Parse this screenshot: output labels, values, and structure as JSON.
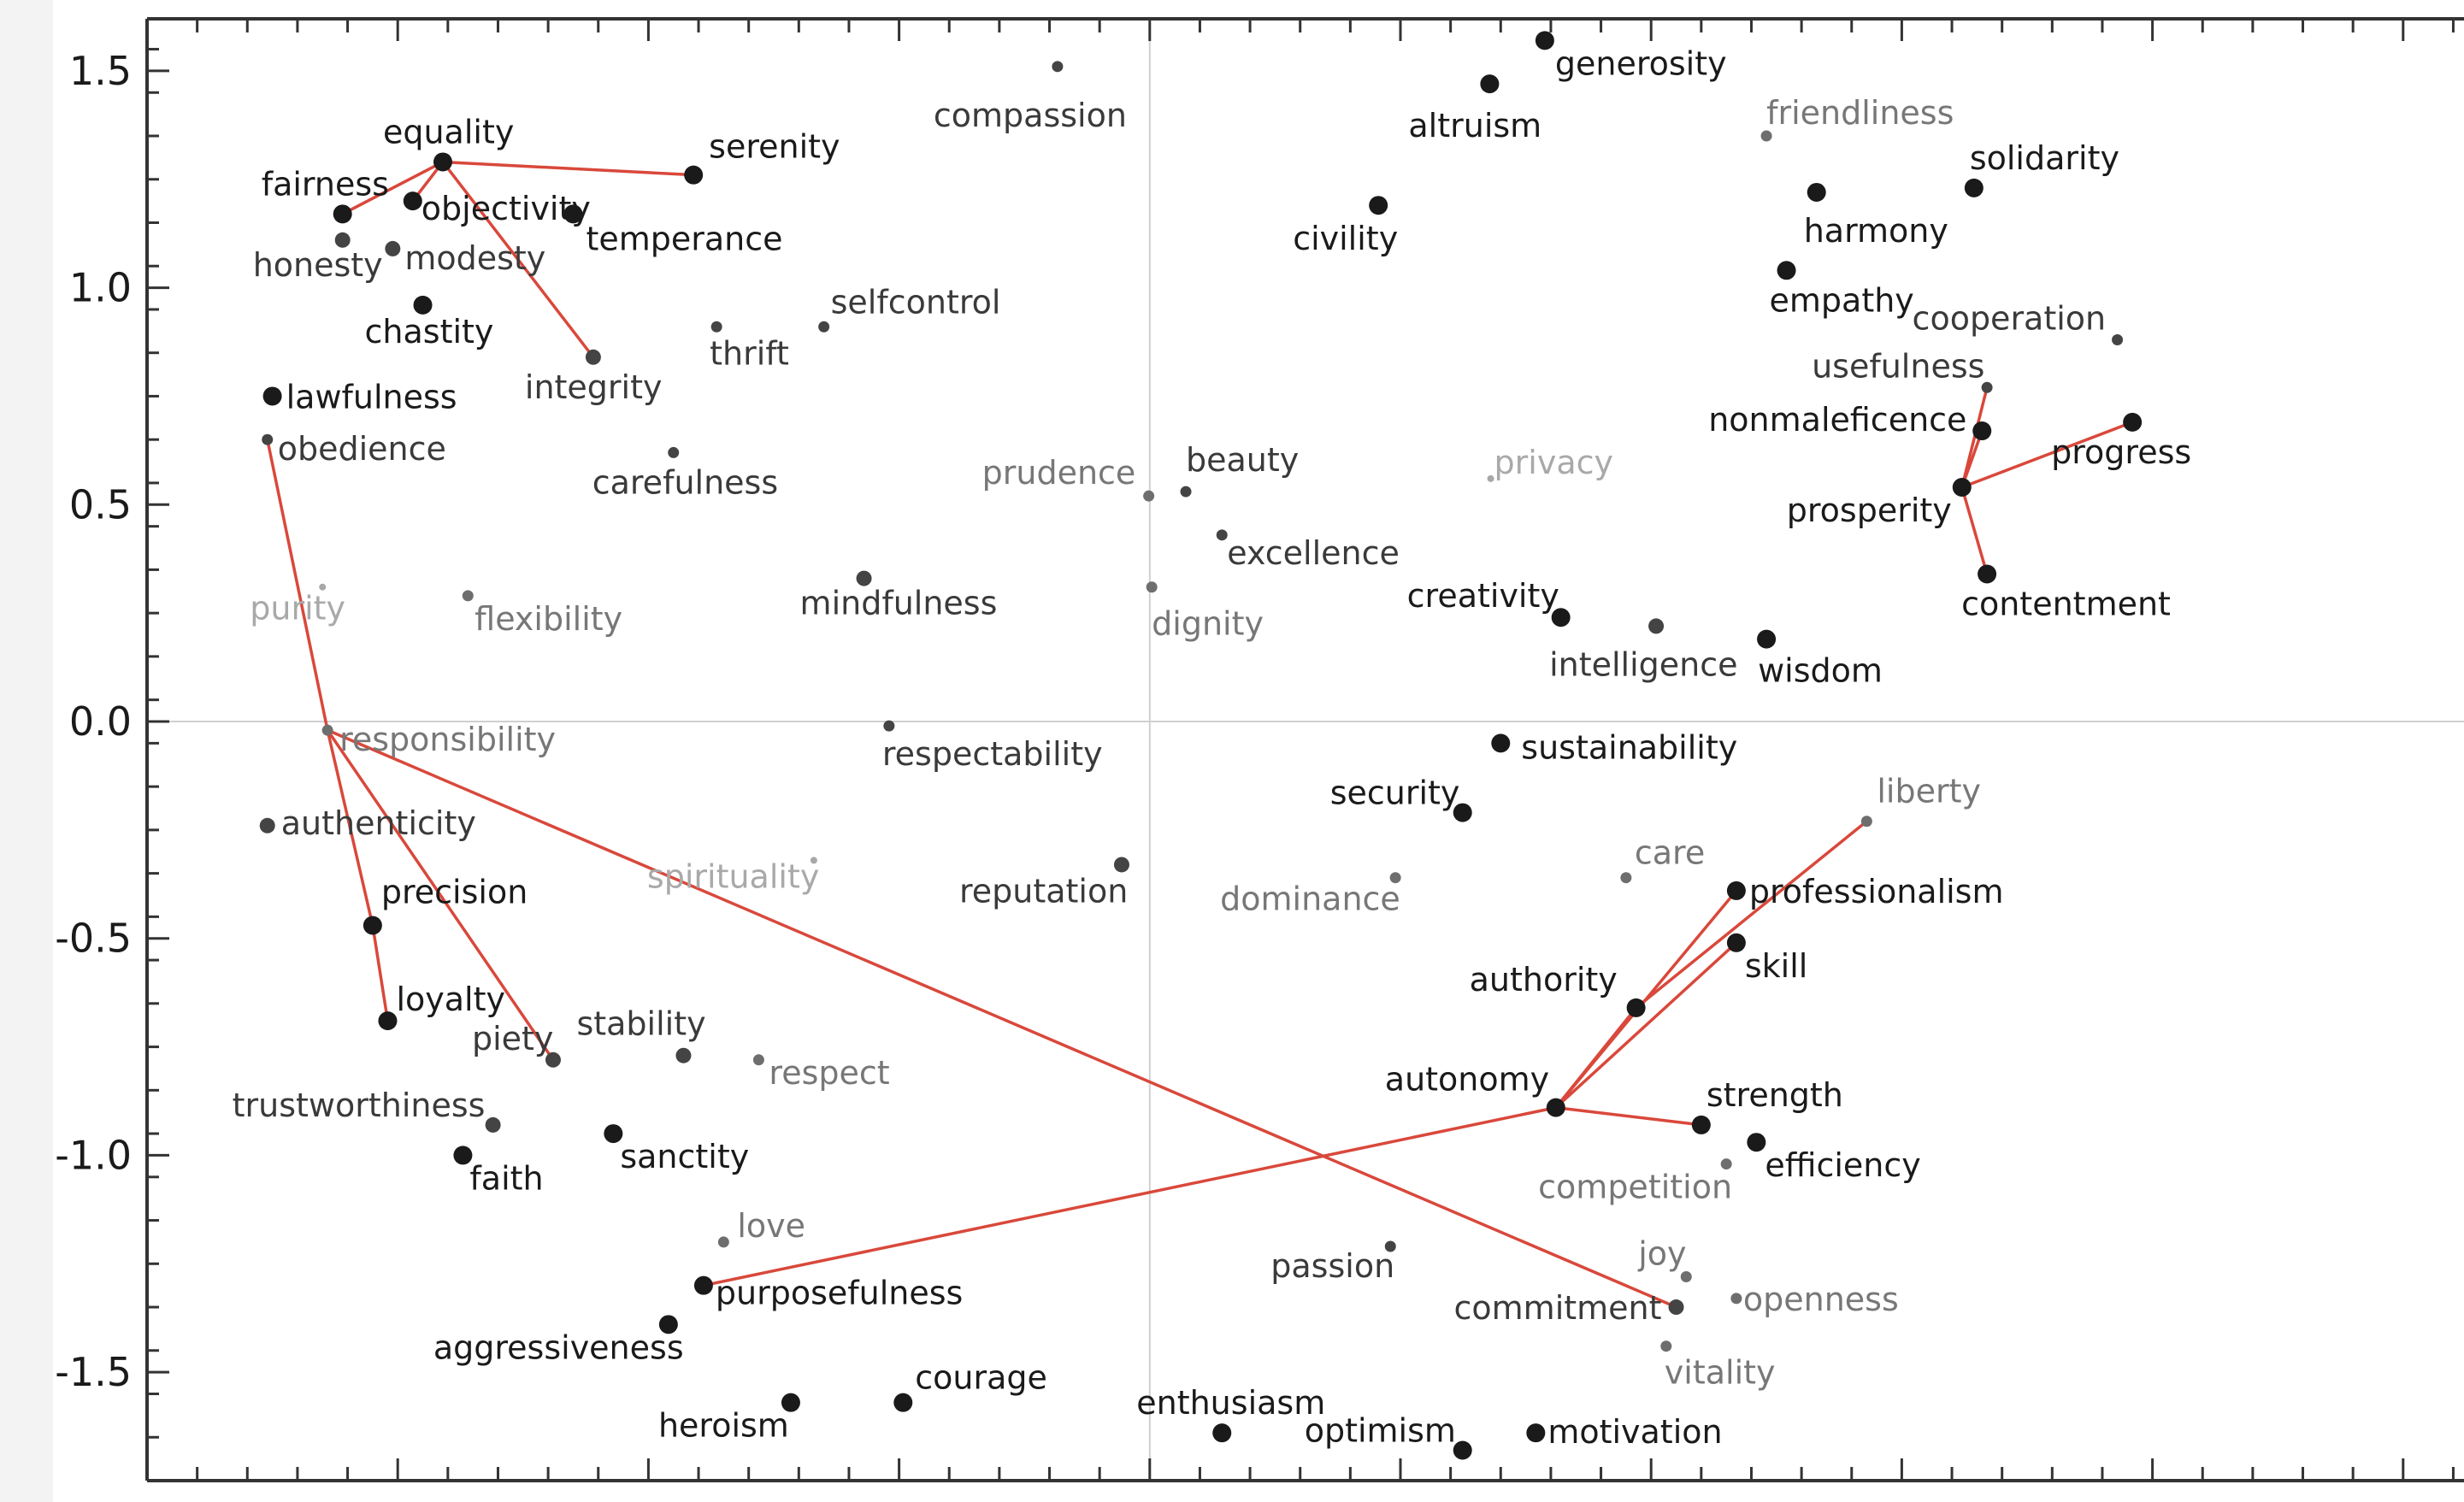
{
  "chart_data": {
    "type": "scatter",
    "title": "",
    "xlabel": "",
    "ylabel": "",
    "xlim": [
      -1.0,
      1.5
    ],
    "ylim": [
      -1.75,
      1.62
    ],
    "grid": false,
    "reference_lines": {
      "x": 0,
      "y": 0
    },
    "y_ticks": [
      1.5,
      1.0,
      0.5,
      0.0,
      -0.5,
      -1.0,
      -1.5
    ],
    "y_tick_labels": [
      "1.5",
      "1.0",
      "0.5",
      "0.0",
      "-0.5",
      "-1.0",
      "-1.5"
    ],
    "colors": {
      "line": "#d9483b",
      "axis": "#333333",
      "refline": "#d0d0d0"
    },
    "points": [
      {
        "label": "compassion",
        "x": -0.092,
        "y": 1.51,
        "shade": "dark",
        "size": "small"
      },
      {
        "label": "generosity",
        "x": 0.394,
        "y": 1.57,
        "shade": "black",
        "size": "large"
      },
      {
        "label": "altruism",
        "x": 0.339,
        "y": 1.47,
        "shade": "black",
        "size": "large"
      },
      {
        "label": "friendliness",
        "x": 0.615,
        "y": 1.35,
        "shade": "gray",
        "size": "small"
      },
      {
        "label": "solidarity",
        "x": 0.822,
        "y": 1.23,
        "shade": "black",
        "size": "large"
      },
      {
        "label": "harmony",
        "x": 0.665,
        "y": 1.22,
        "shade": "black",
        "size": "large"
      },
      {
        "label": "civility",
        "x": 0.228,
        "y": 1.19,
        "shade": "black",
        "size": "large"
      },
      {
        "label": "empathy",
        "x": 0.635,
        "y": 1.04,
        "shade": "black",
        "size": "large"
      },
      {
        "label": "cooperation",
        "x": 0.965,
        "y": 0.88,
        "shade": "dark",
        "size": "small"
      },
      {
        "label": "usefulness",
        "x": 0.835,
        "y": 0.77,
        "shade": "dark",
        "size": "small"
      },
      {
        "label": "nonmaleficence",
        "x": 0.83,
        "y": 0.67,
        "shade": "black",
        "size": "large"
      },
      {
        "label": "progress",
        "x": 0.98,
        "y": 0.69,
        "shade": "black",
        "size": "large"
      },
      {
        "label": "prosperity",
        "x": 0.81,
        "y": 0.54,
        "shade": "black",
        "size": "large"
      },
      {
        "label": "contentment",
        "x": 0.835,
        "y": 0.34,
        "shade": "black",
        "size": "large"
      },
      {
        "label": "privacy",
        "x": 0.34,
        "y": 0.56,
        "shade": "light",
        "size": "tiny"
      },
      {
        "label": "beauty",
        "x": 0.036,
        "y": 0.53,
        "shade": "dark",
        "size": "small"
      },
      {
        "label": "prudence",
        "x": -0.001,
        "y": 0.52,
        "shade": "gray",
        "size": "small"
      },
      {
        "label": "excellence",
        "x": 0.072,
        "y": 0.43,
        "shade": "dark",
        "size": "small"
      },
      {
        "label": "dignity",
        "x": 0.002,
        "y": 0.31,
        "shade": "gray",
        "size": "small"
      },
      {
        "label": "creativity",
        "x": 0.41,
        "y": 0.24,
        "shade": "black",
        "size": "large"
      },
      {
        "label": "intelligence",
        "x": 0.505,
        "y": 0.22,
        "shade": "dark",
        "size": "medium"
      },
      {
        "label": "wisdom",
        "x": 0.615,
        "y": 0.19,
        "shade": "black",
        "size": "large"
      },
      {
        "label": "sustainability",
        "x": 0.35,
        "y": -0.05,
        "shade": "black",
        "size": "large"
      },
      {
        "label": "liberty",
        "x": 0.715,
        "y": -0.23,
        "shade": "gray",
        "size": "small"
      },
      {
        "label": "security",
        "x": 0.312,
        "y": -0.21,
        "shade": "black",
        "size": "large"
      },
      {
        "label": "care",
        "x": 0.475,
        "y": -0.36,
        "shade": "gray",
        "size": "small"
      },
      {
        "label": "professionalism",
        "x": 0.585,
        "y": -0.39,
        "shade": "black",
        "size": "large"
      },
      {
        "label": "skill",
        "x": 0.585,
        "y": -0.51,
        "shade": "black",
        "size": "large"
      },
      {
        "label": "authority",
        "x": 0.485,
        "y": -0.66,
        "shade": "black",
        "size": "large"
      },
      {
        "label": "autonomy",
        "x": 0.405,
        "y": -0.89,
        "shade": "black",
        "size": "large"
      },
      {
        "label": "strength",
        "x": 0.55,
        "y": -0.93,
        "shade": "black",
        "size": "large"
      },
      {
        "label": "efficiency",
        "x": 0.605,
        "y": -0.97,
        "shade": "black",
        "size": "large"
      },
      {
        "label": "competition",
        "x": 0.575,
        "y": -1.02,
        "shade": "gray",
        "size": "small"
      },
      {
        "label": "passion",
        "x": 0.24,
        "y": -1.21,
        "shade": "dark",
        "size": "small"
      },
      {
        "label": "joy",
        "x": 0.535,
        "y": -1.28,
        "shade": "gray",
        "size": "small"
      },
      {
        "label": "openness",
        "x": 0.585,
        "y": -1.33,
        "shade": "gray",
        "size": "small"
      },
      {
        "label": "commitment",
        "x": 0.525,
        "y": -1.35,
        "shade": "dark",
        "size": "medium"
      },
      {
        "label": "vitality",
        "x": 0.515,
        "y": -1.44,
        "shade": "gray",
        "size": "small"
      },
      {
        "label": "motivation",
        "x": 0.385,
        "y": -1.64,
        "shade": "black",
        "size": "large"
      },
      {
        "label": "optimism",
        "x": 0.312,
        "y": -1.68,
        "shade": "black",
        "size": "large"
      },
      {
        "label": "enthusiasm",
        "x": 0.072,
        "y": -1.64,
        "shade": "black",
        "size": "large"
      },
      {
        "label": "equality",
        "x": -0.705,
        "y": 1.29,
        "shade": "black",
        "size": "large"
      },
      {
        "label": "serenity",
        "x": -0.455,
        "y": 1.26,
        "shade": "black",
        "size": "large"
      },
      {
        "label": "fairness",
        "x": -0.805,
        "y": 1.17,
        "shade": "black",
        "size": "large"
      },
      {
        "label": "objectivity",
        "x": -0.735,
        "y": 1.2,
        "shade": "black",
        "size": "large"
      },
      {
        "label": "temperance",
        "x": -0.575,
        "y": 1.17,
        "shade": "black",
        "size": "large"
      },
      {
        "label": "honesty",
        "x": -0.805,
        "y": 1.11,
        "shade": "dark",
        "size": "medium"
      },
      {
        "label": "modesty",
        "x": -0.755,
        "y": 1.09,
        "shade": "dark",
        "size": "medium"
      },
      {
        "label": "chastity",
        "x": -0.725,
        "y": 0.96,
        "shade": "black",
        "size": "large"
      },
      {
        "label": "integrity",
        "x": -0.555,
        "y": 0.84,
        "shade": "dark",
        "size": "medium"
      },
      {
        "label": "thrift",
        "x": -0.432,
        "y": 0.91,
        "shade": "dark",
        "size": "small"
      },
      {
        "label": "selfcontrol",
        "x": -0.325,
        "y": 0.91,
        "shade": "dark",
        "size": "small"
      },
      {
        "label": "lawfulness",
        "x": -0.875,
        "y": 0.75,
        "shade": "black",
        "size": "large"
      },
      {
        "label": "obedience",
        "x": -0.88,
        "y": 0.65,
        "shade": "dark",
        "size": "small"
      },
      {
        "label": "carefulness",
        "x": -0.475,
        "y": 0.62,
        "shade": "dark",
        "size": "small"
      },
      {
        "label": "purity",
        "x": -0.825,
        "y": 0.31,
        "shade": "light",
        "size": "tiny"
      },
      {
        "label": "flexibility",
        "x": -0.68,
        "y": 0.29,
        "shade": "gray",
        "size": "small"
      },
      {
        "label": "mindfulness",
        "x": -0.285,
        "y": 0.33,
        "shade": "dark",
        "size": "medium"
      },
      {
        "label": "responsibility",
        "x": -0.82,
        "y": -0.02,
        "shade": "gray",
        "size": "small"
      },
      {
        "label": "respectability",
        "x": -0.26,
        "y": -0.01,
        "shade": "dark",
        "size": "small"
      },
      {
        "label": "authenticity",
        "x": -0.88,
        "y": -0.24,
        "shade": "dark",
        "size": "medium"
      },
      {
        "label": "spirituality",
        "x": -0.335,
        "y": -0.32,
        "shade": "light",
        "size": "tiny"
      },
      {
        "label": "reputation",
        "x": -0.028,
        "y": -0.33,
        "shade": "dark",
        "size": "medium"
      },
      {
        "label": "dominance",
        "x": 0.245,
        "y": -0.36,
        "shade": "gray",
        "size": "small"
      },
      {
        "label": "precision",
        "x": -0.775,
        "y": -0.47,
        "shade": "black",
        "size": "large"
      },
      {
        "label": "loyalty",
        "x": -0.76,
        "y": -0.69,
        "shade": "black",
        "size": "large"
      },
      {
        "label": "piety",
        "x": -0.595,
        "y": -0.78,
        "shade": "dark",
        "size": "medium"
      },
      {
        "label": "stability",
        "x": -0.465,
        "y": -0.77,
        "shade": "dark",
        "size": "medium"
      },
      {
        "label": "respect",
        "x": -0.39,
        "y": -0.78,
        "shade": "gray",
        "size": "small"
      },
      {
        "label": "trustworthiness",
        "x": -0.655,
        "y": -0.93,
        "shade": "dark",
        "size": "medium"
      },
      {
        "label": "sanctity",
        "x": -0.535,
        "y": -0.95,
        "shade": "black",
        "size": "large"
      },
      {
        "label": "faith",
        "x": -0.685,
        "y": -1.0,
        "shade": "black",
        "size": "large"
      },
      {
        "label": "love",
        "x": -0.425,
        "y": -1.2,
        "shade": "gray",
        "size": "small"
      },
      {
        "label": "purposefulness",
        "x": -0.445,
        "y": -1.3,
        "shade": "black",
        "size": "large"
      },
      {
        "label": "aggressiveness",
        "x": -0.48,
        "y": -1.39,
        "shade": "black",
        "size": "large"
      },
      {
        "label": "courage",
        "x": -0.246,
        "y": -1.57,
        "shade": "black",
        "size": "large"
      },
      {
        "label": "heroism",
        "x": -0.358,
        "y": -1.57,
        "shade": "black",
        "size": "large"
      }
    ],
    "segments": [
      [
        "equality",
        "fairness"
      ],
      [
        "equality",
        "objectivity"
      ],
      [
        "equality",
        "serenity"
      ],
      [
        "equality",
        "integrity"
      ],
      [
        "obedience",
        "responsibility"
      ],
      [
        "responsibility",
        "precision"
      ],
      [
        "precision",
        "loyalty"
      ],
      [
        "responsibility",
        "piety"
      ],
      [
        "responsibility",
        "commitment"
      ],
      [
        "autonomy",
        "purposefulness"
      ],
      [
        "autonomy",
        "authority"
      ],
      [
        "autonomy",
        "professionalism"
      ],
      [
        "autonomy",
        "skill"
      ],
      [
        "autonomy",
        "strength"
      ],
      [
        "authority",
        "liberty"
      ],
      [
        "prosperity",
        "usefulness"
      ],
      [
        "prosperity",
        "nonmaleficence"
      ],
      [
        "prosperity",
        "contentment"
      ],
      [
        "prosperity",
        "progress"
      ]
    ]
  }
}
